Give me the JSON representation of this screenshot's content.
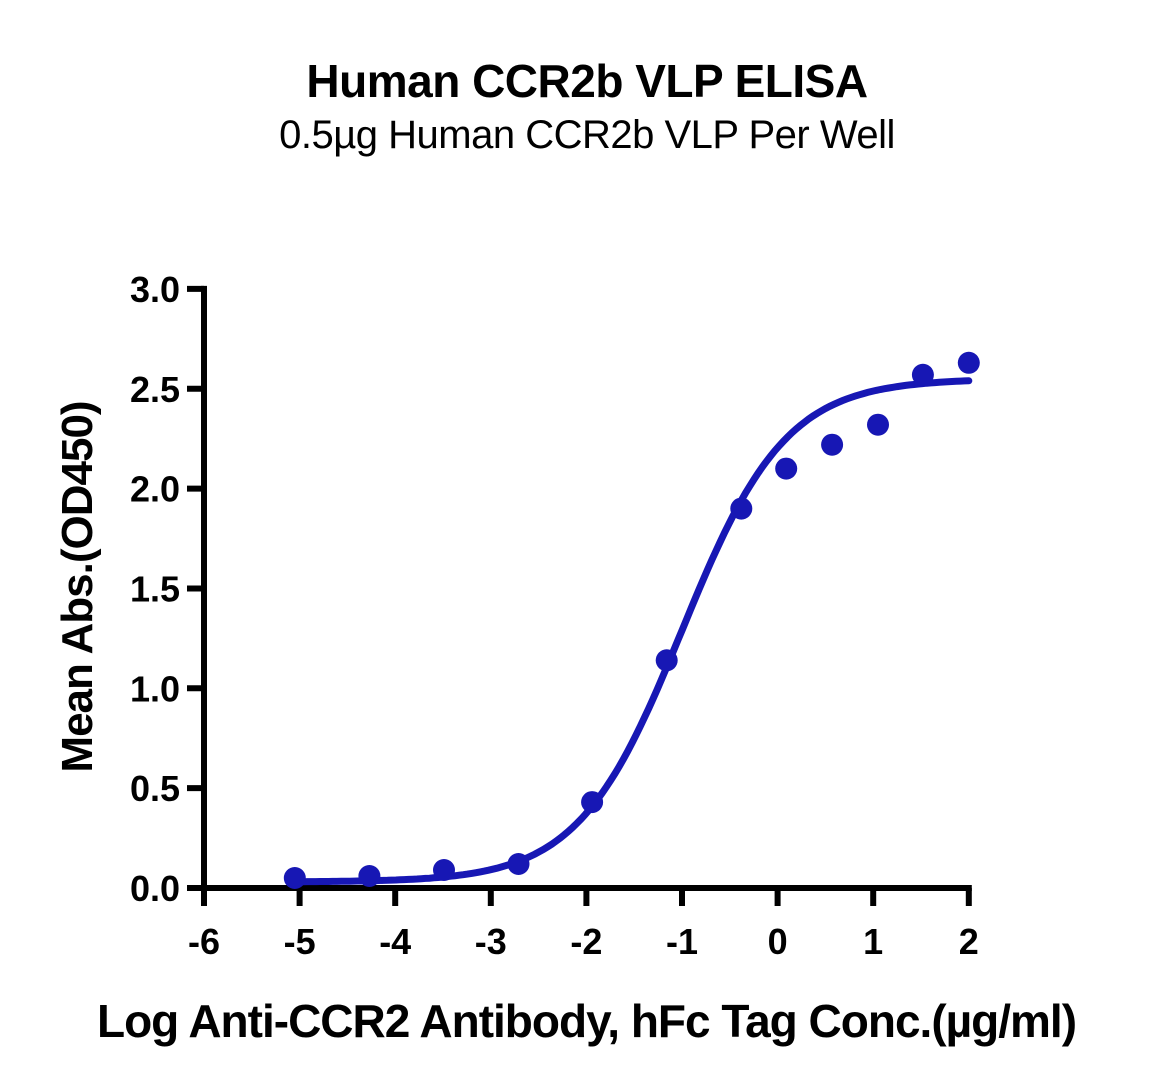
{
  "chart_data": {
    "type": "scatter",
    "title": "Human CCR2b VLP ELISA",
    "subtitle": "0.5µg Human CCR2b VLP Per Well",
    "xlabel": "Log Anti-CCR2 Antibody, hFc Tag Conc.(µg/ml)",
    "ylabel": "Mean Abs.(OD450)",
    "xlim": [
      -6,
      2
    ],
    "ylim": [
      0,
      3
    ],
    "x_ticks": [
      -6,
      -5,
      -4,
      -3,
      -2,
      -1,
      0,
      1,
      2
    ],
    "x_tick_labels": [
      "-6",
      "-5",
      "-4",
      "-3",
      "-2",
      "-1",
      "0",
      "1",
      "2"
    ],
    "y_ticks": [
      0,
      0.5,
      1,
      1.5,
      2,
      2.5,
      3
    ],
    "y_tick_labels": [
      "0.0",
      "0.5",
      "1.0",
      "1.5",
      "2.0",
      "2.5",
      "3.0"
    ],
    "grid": false,
    "legend_position": "none",
    "series": [
      {
        "name": "Anti-CCR2 Antibody, hFc Tag",
        "marker": "circle",
        "x": [
          -5.05,
          -4.27,
          -3.49,
          -2.71,
          -1.94,
          -1.16,
          -0.38,
          0.09,
          0.57,
          1.05,
          1.52,
          2.0
        ],
        "y": [
          0.05,
          0.06,
          0.09,
          0.12,
          0.43,
          1.14,
          1.9,
          2.1,
          2.22,
          2.32,
          2.57,
          2.63
        ]
      }
    ],
    "fit_curve": {
      "model": "4PL",
      "bottom": 0.03,
      "top": 2.55,
      "logEC50": -1.0,
      "hillslope": 0.8,
      "x_start": -5.05,
      "x_end": 2.0
    },
    "colors": {
      "series_blue": "#1717b4",
      "axis_black": "#000000",
      "background": "#ffffff"
    }
  }
}
